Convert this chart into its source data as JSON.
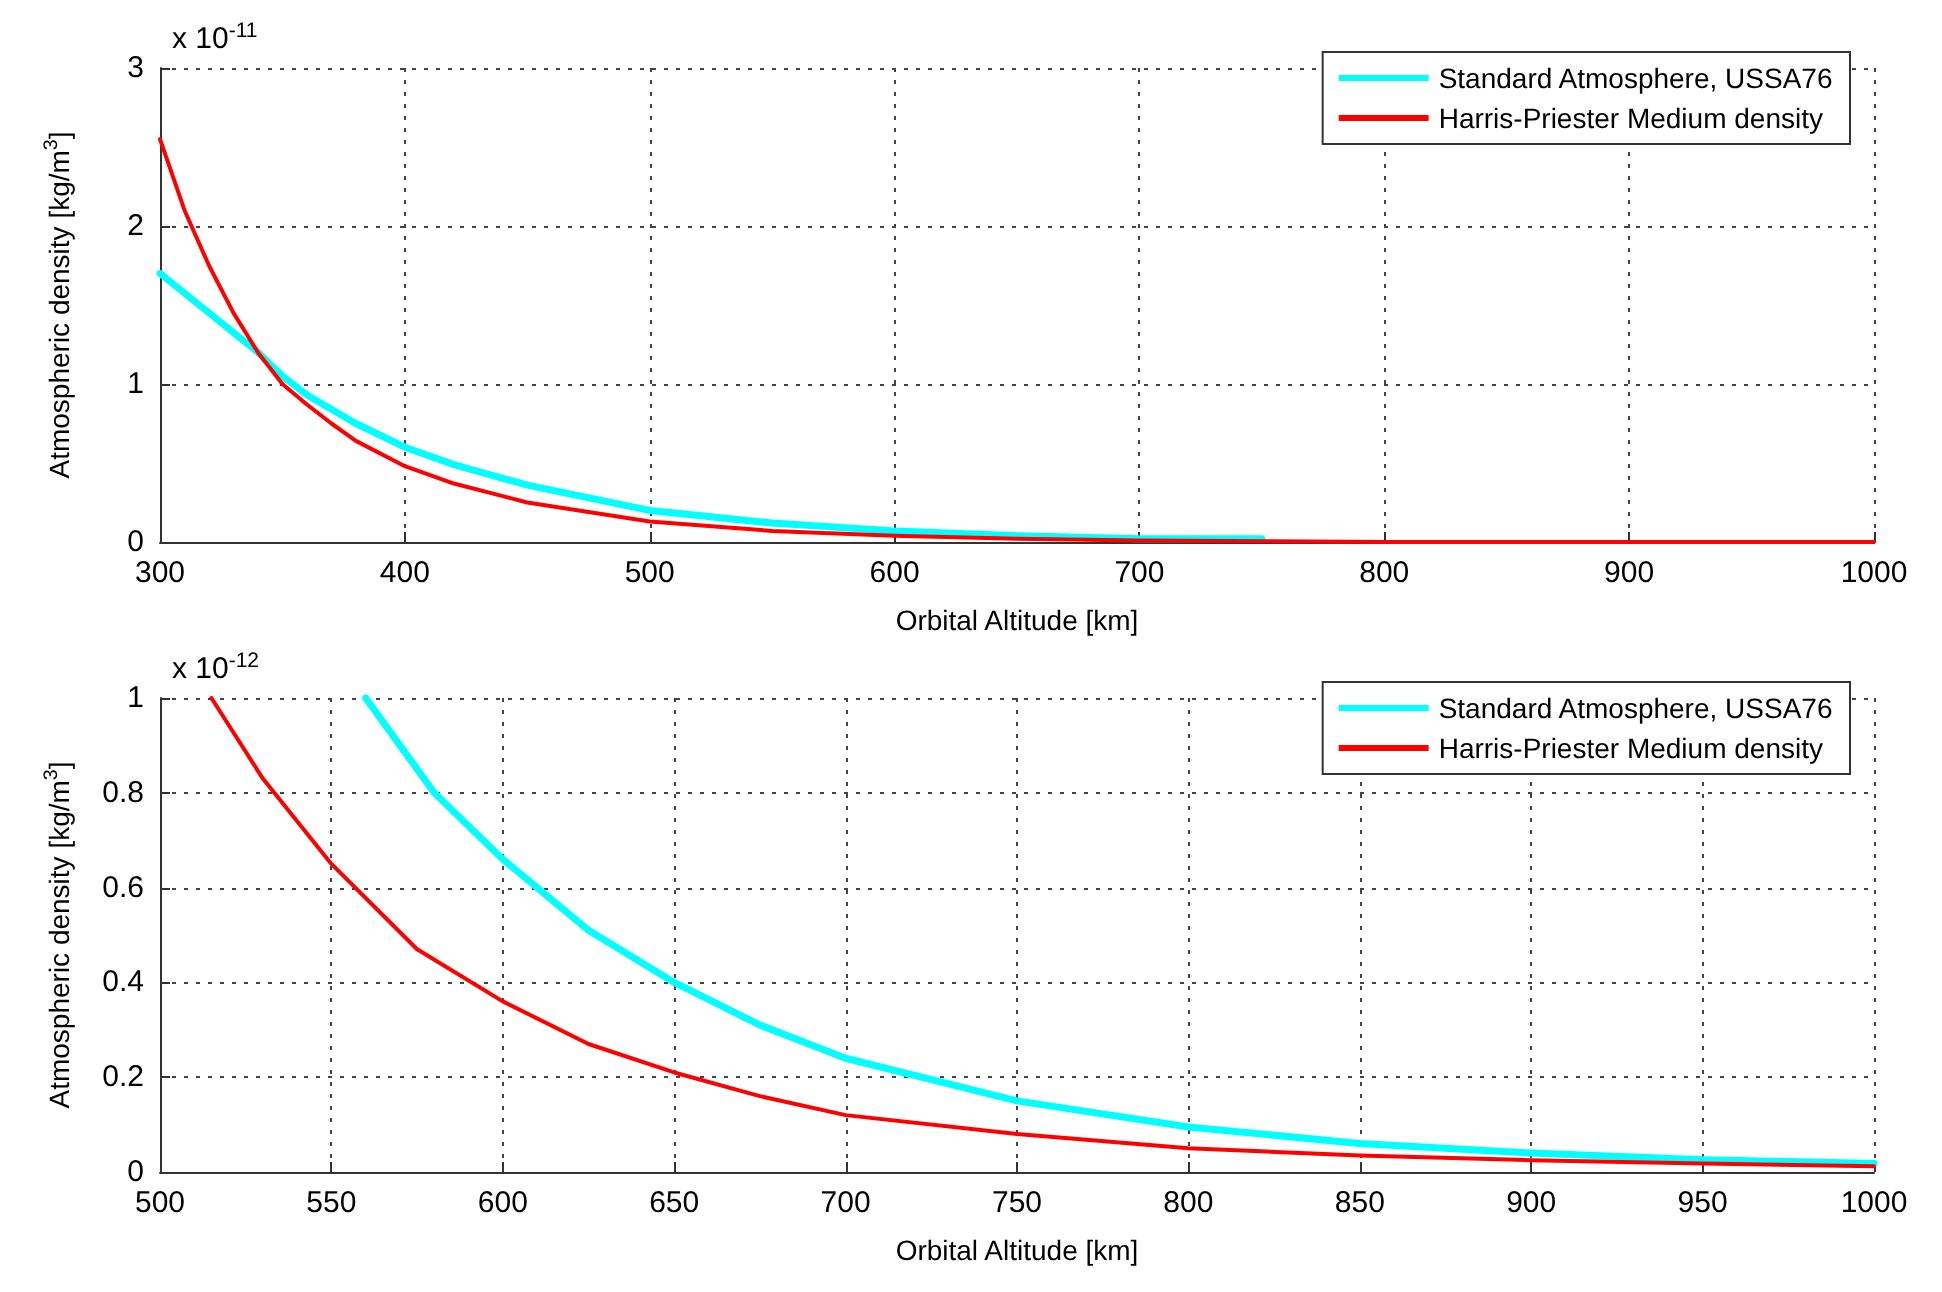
{
  "chart_data": [
    {
      "type": "line",
      "xlabel": "Orbital Altitude [km]",
      "ylabel": "Atmospheric density [kg/m$^{3}$]",
      "annotations": [
        "x 10$^{-11}$"
      ],
      "xlim": [
        300,
        1000
      ],
      "ylim": [
        0,
        3
      ],
      "xticks": [
        300,
        400,
        500,
        600,
        700,
        800,
        900,
        1000
      ],
      "yticks": [
        0,
        1,
        2,
        3
      ],
      "grid": true,
      "legend": "top right",
      "series": [
        {
          "name": "Standard Atmosphere, USSA76",
          "color": "#00ffff",
          "x": [
            300,
            320,
            340,
            350,
            360,
            380,
            400,
            420,
            450,
            500,
            550,
            600,
            650,
            700,
            750
          ],
          "values": [
            1.7,
            1.45,
            1.2,
            1.05,
            0.93,
            0.75,
            0.6,
            0.49,
            0.36,
            0.2,
            0.12,
            0.07,
            0.04,
            0.02,
            0.02
          ]
        },
        {
          "name": "Harris-Priester Medium density",
          "color": "#ff0000",
          "x": [
            300,
            310,
            320,
            330,
            340,
            350,
            360,
            370,
            380,
            400,
            420,
            450,
            500,
            550,
            600,
            650,
            700,
            800,
            900,
            1000
          ],
          "values": [
            2.55,
            2.1,
            1.75,
            1.45,
            1.2,
            1.0,
            0.87,
            0.75,
            0.64,
            0.48,
            0.37,
            0.25,
            0.13,
            0.07,
            0.04,
            0.02,
            0.01,
            0,
            0,
            0
          ]
        }
      ]
    },
    {
      "type": "line",
      "xlabel": "Orbital Altitude [km]",
      "ylabel": "Atmospheric density [kg/m$^{3}$]",
      "annotations": [
        "x 10$^{-12}$"
      ],
      "xlim": [
        500,
        1000
      ],
      "ylim": [
        0,
        1
      ],
      "xticks": [
        500,
        550,
        600,
        650,
        700,
        750,
        800,
        850,
        900,
        950,
        1000
      ],
      "yticks": [
        0,
        0.2,
        0.4,
        0.6,
        0.8,
        1
      ],
      "grid": true,
      "legend": "top right",
      "series": [
        {
          "name": "Standard Atmosphere, USSA76",
          "color": "#00ffff",
          "x": [
            560,
            580,
            600,
            625,
            650,
            675,
            700,
            750,
            800,
            850,
            900,
            950,
            1000
          ],
          "values": [
            1.0,
            0.8,
            0.66,
            0.51,
            0.4,
            0.31,
            0.24,
            0.15,
            0.095,
            0.06,
            0.04,
            0.026,
            0.018
          ]
        },
        {
          "name": "Harris-Priester Medium density",
          "color": "#ff0000",
          "x": [
            515,
            530,
            550,
            575,
            600,
            625,
            650,
            675,
            700,
            750,
            800,
            850,
            900,
            950,
            1000
          ],
          "values": [
            1.0,
            0.83,
            0.65,
            0.47,
            0.36,
            0.27,
            0.21,
            0.16,
            0.12,
            0.08,
            0.05,
            0.035,
            0.025,
            0.018,
            0.012
          ]
        }
      ]
    }
  ]
}
